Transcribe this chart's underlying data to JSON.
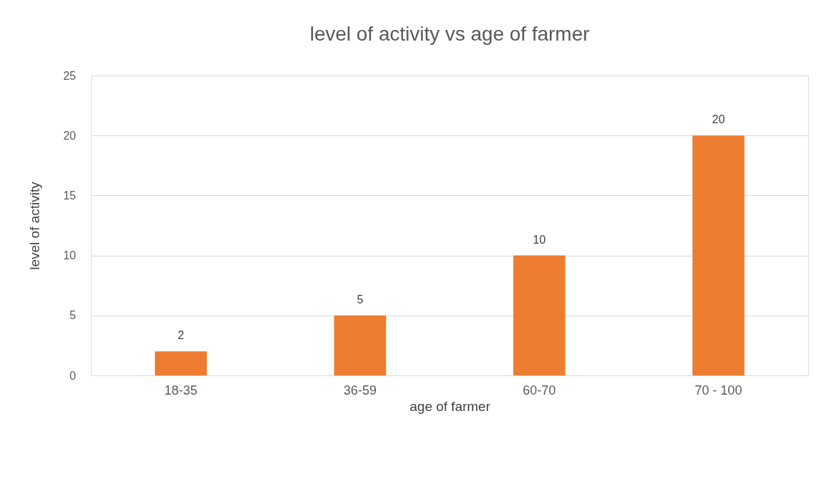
{
  "chart_data": {
    "type": "bar",
    "title": "level of activity vs age of farmer",
    "xlabel": "age of farmer",
    "ylabel": "level of activity",
    "categories": [
      "18-35",
      "36-59",
      "60-70",
      "70 - 100"
    ],
    "values": [
      2,
      5,
      10,
      20
    ],
    "color": "#ed7d31",
    "ylim": [
      0,
      25
    ],
    "yticks": [
      0,
      5,
      10,
      15,
      20,
      25
    ],
    "grid": "y",
    "data_labels": true
  }
}
